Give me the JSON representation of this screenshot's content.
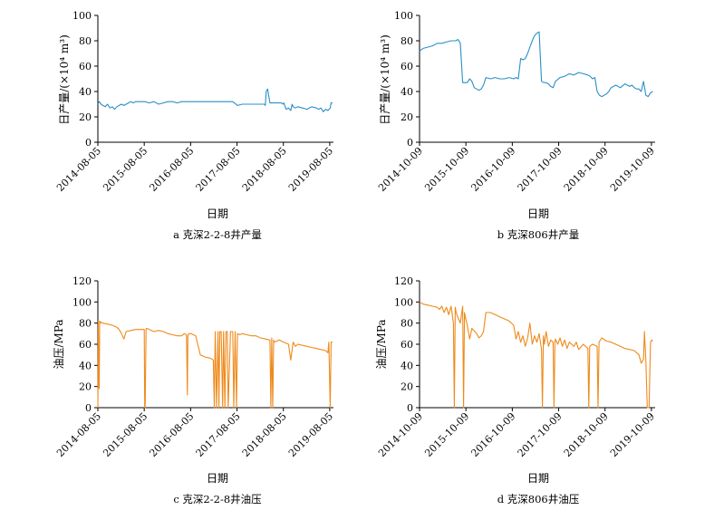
{
  "figure": {
    "panels": [
      {
        "id": "a",
        "caption": "a  克深2-2-8井产量",
        "ylabel": "日产量/(×10⁴ m³)",
        "xlabel": "日期"
      },
      {
        "id": "b",
        "caption": "b  克深806井产量",
        "ylabel": "日产量/(×10⁴ m³)",
        "xlabel": "日期"
      },
      {
        "id": "c",
        "caption": "c  克深2-2-8井油压",
        "ylabel": "油压/MPa",
        "xlabel": "日期"
      },
      {
        "id": "d",
        "caption": "d  克深806井油压",
        "ylabel": "油压/MPa",
        "xlabel": "日期"
      }
    ]
  },
  "chart_data": [
    {
      "panel": "a",
      "type": "line",
      "color": "#2a8fc7",
      "title": "克深2-2-8井产量",
      "xlabel": "日期",
      "ylabel": "日产量/(×10⁴ m³)",
      "xlim": [
        2014.59,
        2019.67
      ],
      "ylim": [
        0,
        100
      ],
      "yticks": [
        0,
        20,
        40,
        60,
        80,
        100
      ],
      "xtick_labels": [
        "2014-08-05",
        "2015-08-05",
        "2016-08-05",
        "2017-08-05",
        "2018-08-05",
        "2019-08-05"
      ],
      "xtick_values": [
        2014.59,
        2015.59,
        2016.59,
        2017.59,
        2018.59,
        2019.59
      ],
      "series": [
        {
          "name": "日产量",
          "x": [
            2014.59,
            2014.62,
            2014.66,
            2014.7,
            2014.75,
            2014.8,
            2014.85,
            2014.9,
            2014.95,
            2015.0,
            2015.05,
            2015.1,
            2015.15,
            2015.2,
            2015.25,
            2015.3,
            2015.35,
            2015.4,
            2015.45,
            2015.5,
            2015.6,
            2015.7,
            2015.8,
            2015.9,
            2016.0,
            2016.1,
            2016.2,
            2016.3,
            2016.4,
            2016.5,
            2016.6,
            2016.7,
            2016.8,
            2016.9,
            2017.0,
            2017.1,
            2017.2,
            2017.3,
            2017.4,
            2017.5,
            2017.6,
            2017.7,
            2017.8,
            2017.9,
            2018.0,
            2018.1,
            2018.15,
            2018.18,
            2018.2,
            2018.22,
            2018.25,
            2018.3,
            2018.4,
            2018.5,
            2018.55,
            2018.58,
            2018.6,
            2018.65,
            2018.7,
            2018.75,
            2018.78,
            2018.8,
            2018.85,
            2018.9,
            2019.0,
            2019.1,
            2019.2,
            2019.3,
            2019.35,
            2019.4,
            2019.45,
            2019.5,
            2019.55,
            2019.6,
            2019.62,
            2019.65
          ],
          "values": [
            30,
            32,
            30,
            29,
            28,
            30,
            27,
            28,
            26,
            28,
            29,
            30,
            29,
            30,
            31,
            32,
            31,
            32,
            32,
            32,
            32,
            31,
            32,
            30,
            31,
            32,
            32,
            31,
            32,
            32,
            32,
            32,
            32,
            32,
            32,
            32,
            32,
            32,
            32,
            32,
            29,
            30,
            30,
            30,
            30,
            30,
            30,
            30,
            29,
            40,
            42,
            31,
            31,
            31,
            31,
            30,
            31,
            26,
            27,
            25,
            30,
            28,
            27,
            28,
            27,
            26,
            28,
            27,
            26,
            27,
            24,
            26,
            25,
            27,
            31,
            31
          ]
        }
      ]
    },
    {
      "panel": "b",
      "type": "line",
      "color": "#2a8fc7",
      "title": "克深806井产量",
      "xlabel": "日期",
      "ylabel": "日产量/(×10⁴ m³)",
      "xlim": [
        2014.77,
        2019.85
      ],
      "ylim": [
        0,
        100
      ],
      "yticks": [
        0,
        20,
        40,
        60,
        80,
        100
      ],
      "xtick_labels": [
        "2014-10-09",
        "2015-10-09",
        "2016-10-09",
        "2017-10-09",
        "2018-10-09",
        "2019-10-09"
      ],
      "xtick_values": [
        2014.77,
        2015.77,
        2016.77,
        2017.77,
        2018.77,
        2019.77
      ],
      "series": [
        {
          "name": "日产量",
          "x": [
            2014.77,
            2014.85,
            2014.95,
            2015.05,
            2015.15,
            2015.25,
            2015.35,
            2015.45,
            2015.55,
            2015.6,
            2015.65,
            2015.7,
            2015.75,
            2015.8,
            2015.85,
            2015.9,
            2015.95,
            2016.0,
            2016.05,
            2016.1,
            2016.15,
            2016.2,
            2016.3,
            2016.4,
            2016.5,
            2016.6,
            2016.7,
            2016.8,
            2016.85,
            2016.9,
            2016.95,
            2017.0,
            2017.05,
            2017.1,
            2017.15,
            2017.2,
            2017.25,
            2017.3,
            2017.35,
            2017.4,
            2017.45,
            2017.5,
            2017.55,
            2017.6,
            2017.65,
            2017.7,
            2017.8,
            2017.9,
            2018.0,
            2018.1,
            2018.2,
            2018.3,
            2018.4,
            2018.45,
            2018.5,
            2018.55,
            2018.6,
            2018.65,
            2018.7,
            2018.75,
            2018.8,
            2018.85,
            2018.9,
            2019.0,
            2019.1,
            2019.2,
            2019.3,
            2019.35,
            2019.4,
            2019.45,
            2019.5,
            2019.55,
            2019.6,
            2019.65,
            2019.7,
            2019.75,
            2019.8
          ],
          "values": [
            72,
            74,
            75,
            76,
            78,
            78,
            79,
            80,
            80,
            81,
            78,
            47,
            47,
            47,
            50,
            48,
            43,
            42,
            41,
            42,
            45,
            51,
            50,
            51,
            50,
            50,
            51,
            50,
            51,
            50,
            66,
            65,
            66,
            70,
            75,
            80,
            84,
            86,
            87,
            48,
            47,
            47,
            46,
            44,
            43,
            48,
            51,
            52,
            54,
            53,
            55,
            54,
            53,
            52,
            50,
            51,
            40,
            37,
            36,
            37,
            38,
            40,
            43,
            45,
            43,
            46,
            44,
            45,
            43,
            42,
            42,
            40,
            48,
            37,
            36,
            39,
            40
          ]
        }
      ]
    },
    {
      "panel": "c",
      "type": "line",
      "color": "#ee8a1b",
      "title": "克深2-2-8井油压",
      "xlabel": "日期",
      "ylabel": "油压/MPa",
      "xlim": [
        2014.59,
        2019.67
      ],
      "ylim": [
        0,
        120
      ],
      "yticks": [
        0,
        20,
        40,
        60,
        80,
        100,
        120
      ],
      "xtick_labels": [
        "2014-08-05",
        "2015-08-05",
        "2016-08-05",
        "2017-08-05",
        "2018-08-05",
        "2019-08-05"
      ],
      "xtick_values": [
        2014.59,
        2015.59,
        2016.59,
        2017.59,
        2018.59,
        2019.59
      ],
      "series": [
        {
          "name": "油压",
          "x": [
            2014.59,
            2014.6,
            2014.61,
            2014.62,
            2014.63,
            2014.64,
            2014.65,
            2014.7,
            2014.8,
            2014.9,
            2015.0,
            2015.05,
            2015.1,
            2015.15,
            2015.2,
            2015.3,
            2015.4,
            2015.5,
            2015.59,
            2015.6,
            2015.61,
            2015.63,
            2015.64,
            2015.65,
            2015.7,
            2015.8,
            2015.9,
            2016.0,
            2016.1,
            2016.2,
            2016.3,
            2016.4,
            2016.45,
            2016.5,
            2016.52,
            2016.53,
            2016.55,
            2016.6,
            2016.7,
            2016.8,
            2016.9,
            2017.0,
            2017.05,
            2017.08,
            2017.1,
            2017.12,
            2017.15,
            2017.18,
            2017.2,
            2017.22,
            2017.25,
            2017.28,
            2017.3,
            2017.33,
            2017.35,
            2017.38,
            2017.4,
            2017.45,
            2017.5,
            2017.52,
            2017.55,
            2017.58,
            2017.6,
            2017.65,
            2017.7,
            2017.8,
            2017.9,
            2018.0,
            2018.1,
            2018.2,
            2018.3,
            2018.32,
            2018.34,
            2018.36,
            2018.38,
            2018.4,
            2018.5,
            2018.6,
            2018.7,
            2018.75,
            2018.8,
            2018.85,
            2018.9,
            2019.0,
            2019.1,
            2019.2,
            2019.3,
            2019.4,
            2019.5,
            2019.55,
            2019.57,
            2019.6,
            2019.62,
            2019.65
          ],
          "values": [
            0,
            82,
            20,
            18,
            82,
            80,
            81,
            80,
            79,
            78,
            76,
            74,
            70,
            65,
            72,
            73,
            74,
            74,
            74,
            0,
            0,
            74,
            75,
            75,
            74,
            72,
            73,
            72,
            70,
            69,
            68,
            68,
            70,
            69,
            12,
            68,
            70,
            70,
            68,
            50,
            48,
            47,
            46,
            45,
            0,
            72,
            0,
            72,
            0,
            72,
            72,
            0,
            72,
            0,
            72,
            72,
            0,
            72,
            72,
            0,
            72,
            0,
            70,
            69,
            70,
            69,
            68,
            68,
            66,
            65,
            64,
            0,
            66,
            0,
            64,
            62,
            64,
            62,
            60,
            45,
            62,
            58,
            60,
            59,
            58,
            57,
            56,
            55,
            54,
            52,
            62,
            0,
            62,
            62
          ]
        }
      ]
    },
    {
      "panel": "d",
      "type": "line",
      "color": "#ee8a1b",
      "title": "克深806井油压",
      "xlabel": "日期",
      "ylabel": "油压/MPa",
      "xlim": [
        2014.77,
        2019.85
      ],
      "ylim": [
        0,
        120
      ],
      "yticks": [
        0,
        20,
        40,
        60,
        80,
        100,
        120
      ],
      "xtick_labels": [
        "2014-10-09",
        "2015-10-09",
        "2016-10-09",
        "2017-10-09",
        "2018-10-09",
        "2019-10-09"
      ],
      "xtick_values": [
        2014.77,
        2015.77,
        2016.77,
        2017.77,
        2018.77,
        2019.77
      ],
      "series": [
        {
          "name": "油压",
          "x": [
            2014.77,
            2014.85,
            2014.95,
            2015.05,
            2015.15,
            2015.2,
            2015.25,
            2015.3,
            2015.35,
            2015.4,
            2015.45,
            2015.5,
            2015.52,
            2015.54,
            2015.56,
            2015.6,
            2015.65,
            2015.7,
            2015.72,
            2015.74,
            2015.76,
            2015.8,
            2015.85,
            2015.9,
            2016.0,
            2016.05,
            2016.1,
            2016.15,
            2016.2,
            2016.3,
            2016.4,
            2016.5,
            2016.6,
            2016.7,
            2016.8,
            2016.85,
            2016.9,
            2016.95,
            2017.0,
            2017.05,
            2017.1,
            2017.15,
            2017.2,
            2017.25,
            2017.3,
            2017.35,
            2017.4,
            2017.42,
            2017.44,
            2017.46,
            2017.5,
            2017.55,
            2017.6,
            2017.65,
            2017.67,
            2017.69,
            2017.7,
            2017.75,
            2017.8,
            2017.85,
            2017.9,
            2017.95,
            2018.0,
            2018.05,
            2018.1,
            2018.15,
            2018.2,
            2018.3,
            2018.4,
            2018.42,
            2018.44,
            2018.5,
            2018.6,
            2018.62,
            2018.64,
            2018.7,
            2018.8,
            2018.9,
            2019.0,
            2019.1,
            2019.2,
            2019.3,
            2019.4,
            2019.5,
            2019.55,
            2019.6,
            2019.62,
            2019.65,
            2019.68,
            2019.7,
            2019.72,
            2019.75,
            2019.78,
            2019.8
          ],
          "values": [
            100,
            98,
            97,
            96,
            95,
            93,
            96,
            90,
            95,
            88,
            96,
            80,
            0,
            95,
            90,
            85,
            80,
            96,
            0,
            90,
            85,
            78,
            65,
            75,
            70,
            66,
            68,
            72,
            90,
            90,
            88,
            86,
            84,
            82,
            78,
            65,
            72,
            62,
            68,
            58,
            66,
            80,
            60,
            68,
            62,
            70,
            55,
            0,
            68,
            60,
            72,
            58,
            64,
            62,
            0,
            62,
            65,
            60,
            66,
            58,
            64,
            56,
            62,
            60,
            58,
            62,
            55,
            60,
            56,
            0,
            58,
            60,
            58,
            0,
            62,
            66,
            63,
            62,
            60,
            58,
            56,
            55,
            54,
            50,
            42,
            46,
            72,
            44,
            0,
            0,
            0,
            62,
            64,
            63
          ]
        }
      ]
    }
  ]
}
